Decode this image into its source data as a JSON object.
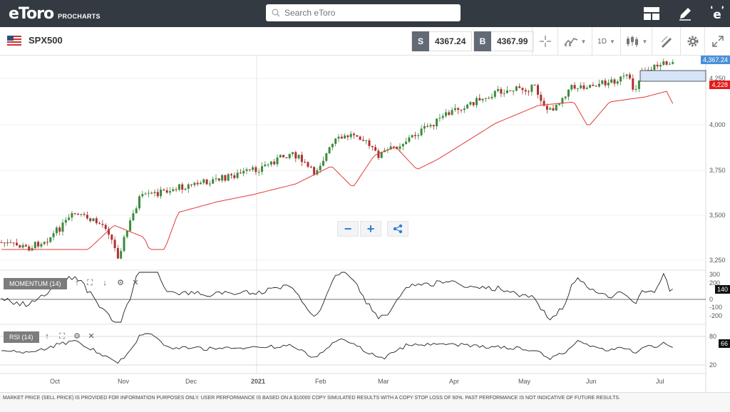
{
  "header": {
    "brand": "eToro",
    "brand_suffix": "PROCHARTS",
    "search_placeholder": "Search eToro"
  },
  "toolbar": {
    "instrument": "SPX500",
    "sell_tag": "S",
    "sell_price": "4367.24",
    "buy_tag": "B",
    "buy_price": "4367.99",
    "timeframe": "1D"
  },
  "chart": {
    "price_axis": [
      "4,250",
      "4,000",
      "3,750",
      "3,500",
      "3,250"
    ],
    "last_price_badge": "4,367.24",
    "ma_badge": "4,228",
    "time_axis": [
      "Oct",
      "Nov",
      "Dec",
      "2021",
      "Feb",
      "Mar",
      "Apr",
      "May",
      "Jun",
      "Jul"
    ],
    "zoom_out": "−",
    "zoom_in": "+"
  },
  "momentum": {
    "label": "MOMENTUM (14)",
    "axis": [
      "300",
      "200",
      "0",
      "-100",
      "-200"
    ],
    "badge": "140"
  },
  "rsi": {
    "label": "RSI (14)",
    "axis": [
      "80",
      "20"
    ],
    "badge": "66"
  },
  "colors": {
    "header_bg": "#333a42",
    "bull_candle": "#3d8a3d",
    "bear_candle": "#b03030",
    "moving_average": "#e03a3a",
    "accent": "#2e7fd0"
  },
  "footer": {
    "disclaimer": "MARKET PRICE (SELL PRICE) IS PROVIDED FOR INFORMATION PURPOSES ONLY. USER PERFORMANCE IS BASED ON A $10000 COPY SIMULATED RESULTS WITH A COPY STOP LOSS OF 60%. PAST PERFORMANCE IS NOT INDICATIVE OF FUTURE RESULTS."
  }
}
